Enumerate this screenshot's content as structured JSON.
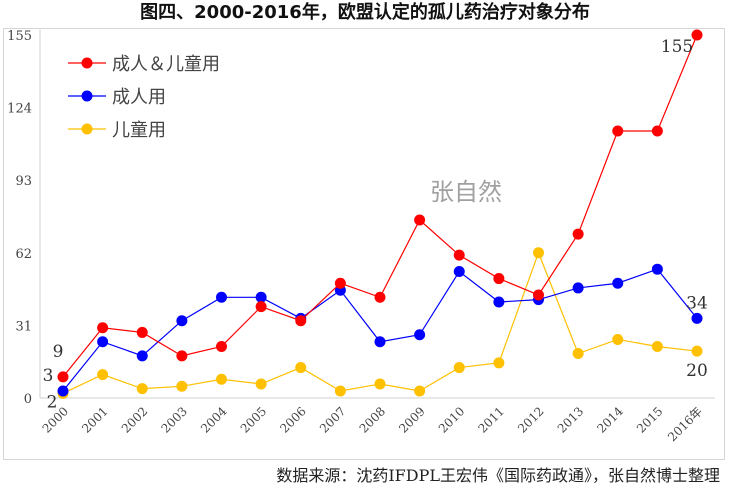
{
  "chart_data": {
    "type": "line",
    "title": "图四、2000-2016年，欧盟认定的孤儿药治疗对象分布",
    "categories": [
      "2000",
      "2001",
      "2002",
      "2003",
      "2004",
      "2005",
      "2006",
      "2007",
      "2008",
      "2009",
      "2010",
      "2011",
      "2012",
      "2013",
      "2014",
      "2015",
      "2016年"
    ],
    "ylim": [
      0,
      155
    ],
    "yticks": [
      0,
      31,
      62,
      93,
      124,
      155
    ],
    "grid": false,
    "legend_position": "top-left",
    "series": [
      {
        "name": "成人＆儿童用",
        "color": "#ff0000",
        "values": [
          9,
          30,
          28,
          18,
          22,
          39,
          33,
          49,
          43,
          76,
          61,
          51,
          44,
          70,
          114,
          114,
          155
        ]
      },
      {
        "name": "成人用",
        "color": "#0000ff",
        "values": [
          3,
          24,
          18,
          33,
          43,
          43,
          34,
          46,
          24,
          27,
          54,
          41,
          42,
          47,
          49,
          55,
          34
        ]
      },
      {
        "name": "儿童用",
        "color": "#ffc000",
        "values": [
          2,
          10,
          4,
          5,
          8,
          6,
          13,
          3,
          6,
          3,
          13,
          15,
          62,
          19,
          25,
          22,
          20
        ]
      }
    ],
    "data_labels": {
      "first": [
        "9",
        "3",
        "2"
      ],
      "last": [
        "155",
        "34",
        "20"
      ]
    }
  },
  "watermark": "张自然",
  "source": "数据来源：沈药IFDPL王宏伟《国际药政通》，张自然博士整理"
}
